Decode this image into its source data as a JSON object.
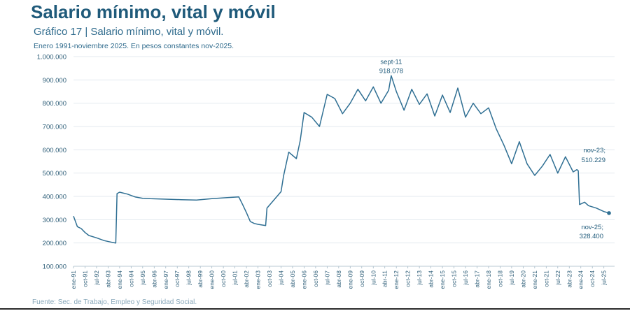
{
  "header": {
    "title": "Salario mínimo, vital y móvil",
    "subtitle": "Gráfico 17 | Salario mínimo, vital y móvil.",
    "note": "Enero 1991-noviembre 2025. En pesos constantes nov-2025."
  },
  "footer": {
    "source": "Fuente: Sec. de Trabajo, Empleo y Seguridad Social."
  },
  "chart_data": {
    "type": "line",
    "series": [
      {
        "color": "#2f6f93",
        "points": [
          [
            "ene-91",
            315000
          ],
          [
            "abr-91",
            270000
          ],
          [
            "jul-91",
            262000
          ],
          [
            "oct-91",
            245000
          ],
          [
            "ene-92",
            232000
          ],
          [
            "jul-92",
            222000
          ],
          [
            "ene-93",
            210000
          ],
          [
            "jul-93",
            203000
          ],
          [
            "oct-93",
            200000
          ],
          [
            "nov-93",
            412000
          ],
          [
            "ene-94",
            418000
          ],
          [
            "jul-94",
            410000
          ],
          [
            "ene-95",
            398000
          ],
          [
            "jul-95",
            392000
          ],
          [
            "ene-96",
            390000
          ],
          [
            "ene-97",
            388000
          ],
          [
            "ene-98",
            386000
          ],
          [
            "ene-99",
            384000
          ],
          [
            "ene-00",
            390000
          ],
          [
            "ene-01",
            395000
          ],
          [
            "oct-01",
            398000
          ],
          [
            "ene-02",
            365000
          ],
          [
            "abr-02",
            330000
          ],
          [
            "jul-02",
            292000
          ],
          [
            "oct-02",
            284000
          ],
          [
            "ene-03",
            280000
          ],
          [
            "jul-03",
            275000
          ],
          [
            "ago-03",
            350000
          ],
          [
            "jul-04",
            420000
          ],
          [
            "sept-04",
            488000
          ],
          [
            "ene-05",
            590000
          ],
          [
            "jul-05",
            562000
          ],
          [
            "oct-05",
            640000
          ],
          [
            "ene-06",
            760000
          ],
          [
            "jul-06",
            740000
          ],
          [
            "ene-07",
            700000
          ],
          [
            "jul-07",
            838000
          ],
          [
            "ene-08",
            820000
          ],
          [
            "jul-08",
            755000
          ],
          [
            "ene-09",
            800000
          ],
          [
            "jul-09",
            860000
          ],
          [
            "ene-10",
            810000
          ],
          [
            "jul-10",
            870000
          ],
          [
            "ene-11",
            800000
          ],
          [
            "jul-11",
            855000
          ],
          [
            "sept-11",
            918078
          ],
          [
            "ene-12",
            850000
          ],
          [
            "jul-12",
            770000
          ],
          [
            "ene-13",
            860000
          ],
          [
            "jul-13",
            795000
          ],
          [
            "ene-14",
            840000
          ],
          [
            "jul-14",
            745000
          ],
          [
            "ene-15",
            835000
          ],
          [
            "jul-15",
            760000
          ],
          [
            "ene-16",
            865000
          ],
          [
            "jul-16",
            740000
          ],
          [
            "ene-17",
            800000
          ],
          [
            "jul-17",
            755000
          ],
          [
            "ene-18",
            780000
          ],
          [
            "jul-18",
            690000
          ],
          [
            "ene-19",
            620000
          ],
          [
            "jul-19",
            540000
          ],
          [
            "ene-20",
            635000
          ],
          [
            "jul-20",
            540000
          ],
          [
            "ene-21",
            490000
          ],
          [
            "jul-21",
            530000
          ],
          [
            "ene-22",
            580000
          ],
          [
            "jul-22",
            500000
          ],
          [
            "ene-23",
            570000
          ],
          [
            "jul-23",
            505000
          ],
          [
            "oct-23",
            515000
          ],
          [
            "nov-23",
            510229
          ],
          [
            "dic-23",
            365000
          ],
          [
            "abr-24",
            375000
          ],
          [
            "jul-24",
            360000
          ],
          [
            "ene-25",
            350000
          ],
          [
            "jul-25",
            335000
          ],
          [
            "nov-25",
            328400
          ]
        ]
      }
    ],
    "ylim": [
      100000,
      1000000
    ],
    "yticks": [
      "100.000",
      "200.000",
      "300.000",
      "400.000",
      "500.000",
      "600.000",
      "700.000",
      "800.000",
      "900.000",
      "1.000.000"
    ],
    "xticks": [
      "ene-91",
      "oct-91",
      "jul-92",
      "abr-93",
      "ene-94",
      "oct-94",
      "jul-95",
      "abr-96",
      "ene-97",
      "oct-97",
      "jul-98",
      "abr-99",
      "ene-00",
      "oct-00",
      "jul-01",
      "abr-02",
      "ene-03",
      "oct-03",
      "jul-04",
      "abr-05",
      "ene-06",
      "oct-06",
      "jul-07",
      "abr-08",
      "ene-09",
      "oct-09",
      "jul-10",
      "abr-11",
      "ene-12",
      "oct-12",
      "jul-13",
      "abr-14",
      "ene-15",
      "oct-15",
      "jul-16",
      "abr-17",
      "ene-18",
      "oct-18",
      "jul-19",
      "abr-20",
      "ene-21",
      "oct-21",
      "jul-22",
      "abr-23",
      "ene-24",
      "oct-24",
      "jul-25"
    ],
    "grid": true,
    "annotations": [
      {
        "label": "sept-11",
        "value": "918.078",
        "x": "sept-11",
        "y": 918078
      },
      {
        "label": "nov-23;",
        "value": "510.229",
        "x": "nov-23",
        "y": 510229
      },
      {
        "label": "nov-25;",
        "value": "328.400",
        "x": "nov-25",
        "y": 328400
      }
    ]
  }
}
